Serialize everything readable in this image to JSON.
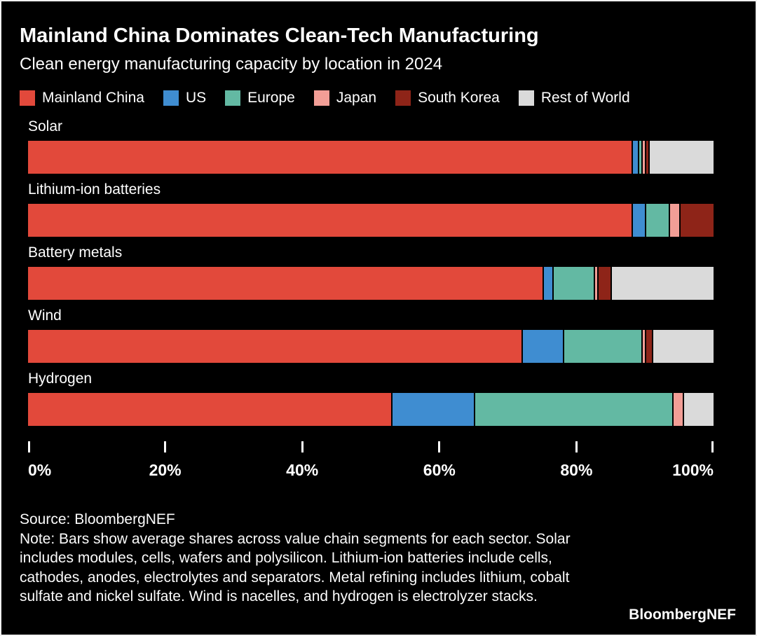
{
  "header": {
    "title": "Mainland China Dominates Clean-Tech Manufacturing",
    "subtitle": "Clean energy manufacturing capacity by location in 2024"
  },
  "chart_data": {
    "type": "bar",
    "orientation": "horizontal",
    "stacked": true,
    "title": "Mainland China Dominates Clean-Tech Manufacturing",
    "subtitle": "Clean energy manufacturing capacity by location in 2024",
    "categories": [
      "Solar",
      "Lithium-ion batteries",
      "Battery metals",
      "Wind",
      "Hydrogen"
    ],
    "series": [
      {
        "name": "Mainland China",
        "color": "#e2493b",
        "values": [
          88,
          88,
          75,
          72,
          53
        ]
      },
      {
        "name": "US",
        "color": "#3f8dd1",
        "values": [
          1,
          2,
          1.5,
          6,
          12
        ]
      },
      {
        "name": "Europe",
        "color": "#63b9a3",
        "values": [
          0.5,
          3.5,
          6,
          11.5,
          29
        ]
      },
      {
        "name": "Japan",
        "color": "#f29e96",
        "values": [
          0.5,
          1.5,
          0.5,
          0.5,
          1.5
        ]
      },
      {
        "name": "South Korea",
        "color": "#8e2418",
        "values": [
          0.5,
          5,
          2,
          1,
          0
        ]
      },
      {
        "name": "Rest of World",
        "color": "#dadada",
        "values": [
          9.5,
          0,
          15,
          9,
          4.5
        ]
      }
    ],
    "xlabel": "",
    "ylabel": "",
    "xlim": [
      0,
      100
    ],
    "x_ticks": [
      "0%",
      "20%",
      "40%",
      "60%",
      "80%",
      "100%"
    ],
    "units": "percent",
    "grid": false,
    "legend_position": "top",
    "background_color": "#000000",
    "text_color": "#ffffff"
  },
  "footer": {
    "source": "Source: BloombergNEF",
    "note": "Note: Bars show average shares across value chain segments for each sector. Solar includes modules, cells, wafers and polysilicon. Lithium-ion batteries include cells, cathodes, anodes, electrolytes and separators. Metal refining includes lithium, cobalt sulfate and nickel sulfate. Wind is nacelles, and hydrogen is electrolyzer stacks.",
    "brand": "BloombergNEF"
  }
}
